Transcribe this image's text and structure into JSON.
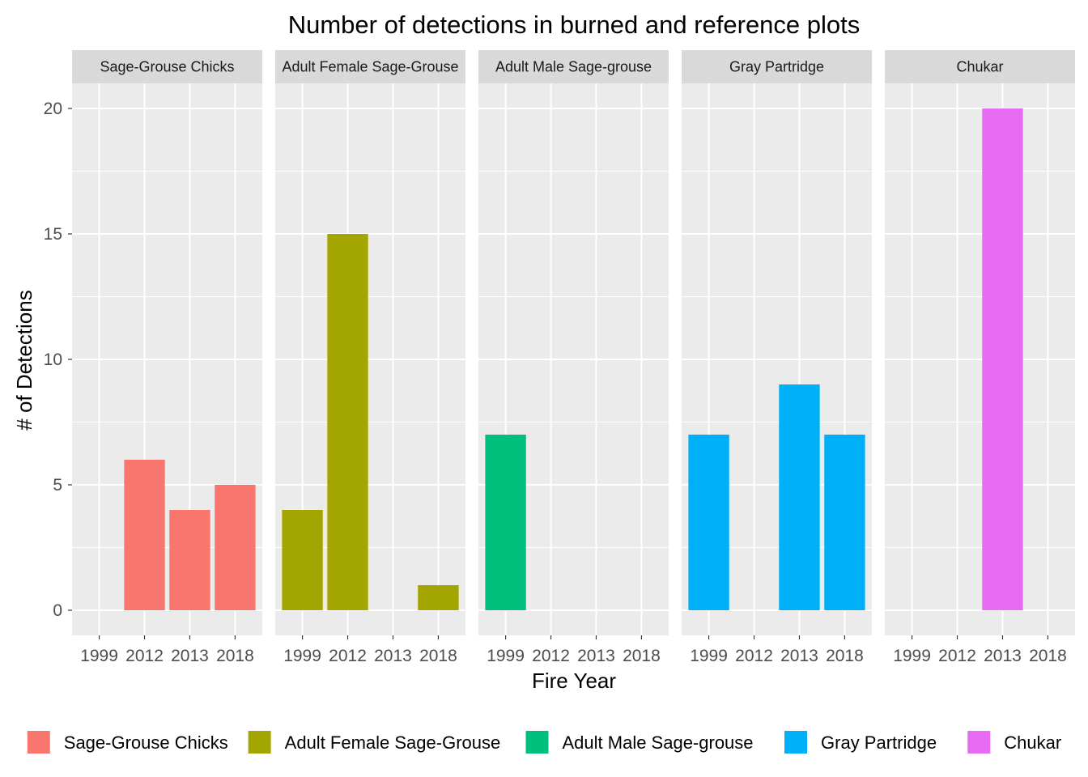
{
  "chart_data": {
    "type": "bar",
    "title": "Number of detections in burned and reference plots",
    "xlabel": "Fire Year",
    "ylabel": "# of Detections",
    "categories": [
      "1999",
      "2012",
      "2013",
      "2018"
    ],
    "ylim": [
      -1,
      21
    ],
    "yticks": [
      0,
      5,
      10,
      15,
      20
    ],
    "grid": true,
    "legend_position": "bottom",
    "facets": [
      {
        "name": "Sage-Grouse Chicks",
        "color": "#F8766D",
        "values": [
          null,
          6,
          4,
          5
        ]
      },
      {
        "name": "Adult Female Sage-Grouse",
        "color": "#A3A500",
        "values": [
          4,
          15,
          null,
          1
        ]
      },
      {
        "name": "Adult Male Sage-grouse",
        "color": "#00BF7D",
        "values": [
          7,
          null,
          null,
          null
        ]
      },
      {
        "name": "Gray Partridge",
        "color": "#00B0F6",
        "values": [
          7,
          null,
          9,
          7
        ]
      },
      {
        "name": "Chukar",
        "color": "#E76BF3",
        "values": [
          null,
          null,
          20,
          null
        ]
      }
    ],
    "facet_labels": [
      "Sage-Grouse Chicks",
      "Adult Female Sage-Grouse",
      "Adult Male Sage-grouse",
      "Gray Partridge",
      "Chukar"
    ],
    "legend": [
      "Sage-Grouse Chicks",
      "Adult Female Sage-Grouse",
      "Adult Male Sage-grouse",
      "Gray Partridge",
      "Chukar"
    ]
  }
}
